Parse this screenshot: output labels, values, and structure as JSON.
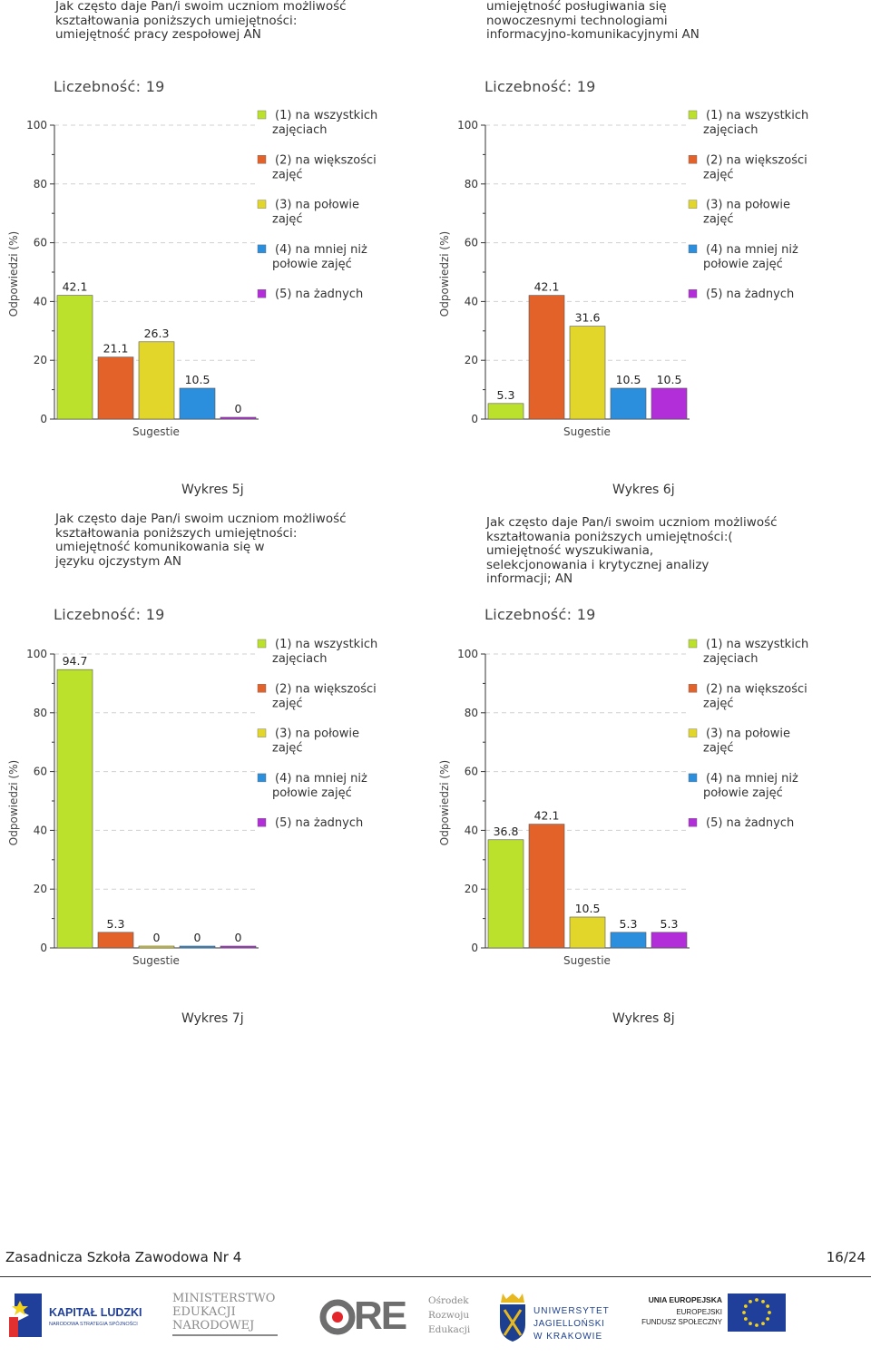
{
  "legend": [
    {
      "lines": [
        "(1) na wszystkich",
        "zajęciach"
      ],
      "color": "#bce12d"
    },
    {
      "lines": [
        "(2) na większości",
        "zajęć"
      ],
      "color": "#e2622a"
    },
    {
      "lines": [
        "(3) na połowie",
        "zajęć"
      ],
      "color": "#e2d62a"
    },
    {
      "lines": [
        "(4) na mniej niż",
        "połowie zajęć"
      ],
      "color": "#2b8fdd"
    },
    {
      "lines": [
        "(5) na żadnych"
      ],
      "color": "#b22ed8"
    }
  ],
  "chart_data": [
    {
      "type": "bar",
      "id": "5j",
      "question_lines": [
        "Jak często daje Pan/i swoim uczniom możliwość",
        "kształtowania poniższych umiejętności:",
        "umiejętność pracy zespołowej   AN"
      ],
      "count_label": "Liczebność: 19",
      "ylabel": "Odpowiedzi (%)",
      "xlabel": "Sugestie",
      "ylim": [
        0,
        100
      ],
      "yticks": [
        0,
        20,
        40,
        60,
        80,
        100
      ],
      "categories": [
        "(1)",
        "(2)",
        "(3)",
        "(4)",
        "(5)"
      ],
      "values": [
        42.1,
        21.1,
        26.3,
        10.5,
        0
      ],
      "labels": [
        "42.1",
        "21.1",
        "26.3",
        "10.5",
        "0"
      ],
      "caption": "Wykres 5j"
    },
    {
      "type": "bar",
      "id": "6j",
      "question_lines": [
        "umiejętność posługiwania się",
        "nowoczesnymi technologiami",
        "informacyjno-komunikacyjnymi AN"
      ],
      "count_label": "Liczebność: 19",
      "ylabel": "Odpowiedzi (%)",
      "xlabel": "Sugestie",
      "ylim": [
        0,
        100
      ],
      "yticks": [
        0,
        20,
        40,
        60,
        80,
        100
      ],
      "categories": [
        "(1)",
        "(2)",
        "(3)",
        "(4)",
        "(5)"
      ],
      "values": [
        5.3,
        42.1,
        31.6,
        10.5,
        10.5
      ],
      "labels": [
        "5.3",
        "42.1",
        "31.6",
        "10.5",
        "10.5"
      ],
      "caption": "Wykres 6j"
    },
    {
      "type": "bar",
      "id": "7j",
      "question_lines": [
        "Jak często daje Pan/i swoim uczniom możliwość",
        "kształtowania poniższych umiejętności:",
        "umiejętność komunikowania się w",
        "języku ojczystym AN"
      ],
      "count_label": "Liczebność: 19",
      "ylabel": "Odpowiedzi (%)",
      "xlabel": "Sugestie",
      "ylim": [
        0,
        100
      ],
      "yticks": [
        0,
        20,
        40,
        60,
        80,
        100
      ],
      "categories": [
        "(1)",
        "(2)",
        "(3)",
        "(4)",
        "(5)"
      ],
      "values": [
        94.7,
        5.3,
        0,
        0,
        0
      ],
      "labels": [
        "94.7",
        "5.3",
        "0",
        "0",
        "0"
      ],
      "caption": "Wykres 7j"
    },
    {
      "type": "bar",
      "id": "8j",
      "question_lines": [
        "Jak często daje Pan/i swoim uczniom możliwość",
        "kształtowania poniższych umiejętności:(",
        "umiejętność wyszukiwania,",
        "selekcjonowania i krytycznej analizy",
        "informacji;  AN"
      ],
      "count_label": "Liczebność: 19",
      "ylabel": "Odpowiedzi (%)",
      "xlabel": "Sugestie",
      "ylim": [
        0,
        100
      ],
      "yticks": [
        0,
        20,
        40,
        60,
        80,
        100
      ],
      "categories": [
        "(1)",
        "(2)",
        "(3)",
        "(4)",
        "(5)"
      ],
      "values": [
        36.8,
        42.1,
        10.5,
        5.3,
        5.3
      ],
      "labels": [
        "36.8",
        "42.1",
        "10.5",
        "5.3",
        "5.3"
      ],
      "caption": "Wykres 8j"
    }
  ],
  "footer": {
    "school": "Zasadnicza Szkoła Zawodowa Nr 4",
    "page": "16/24"
  },
  "logos": {
    "kapital_ludzki": {
      "title": "KAPITAŁ LUDZKI",
      "subtitle": "NARODOWA STRATEGIA SPÓJNOŚCI"
    },
    "men": {
      "lines": [
        "MINISTERSTWO",
        "EDUKACJI",
        "NARODOWEJ"
      ]
    },
    "ore": {
      "mark": "RE",
      "lines": [
        "Ośrodek",
        "Rozwoju",
        "Edukacji"
      ]
    },
    "uj": {
      "lines": [
        "UNIWERSYTET",
        "JAGIELLOŃSKI",
        "W KRAKOWIE"
      ]
    },
    "ue": {
      "lines": [
        "UNIA EUROPEJSKA",
        "EUROPEJSKI",
        "FUNDUSZ SPOŁECZNY"
      ]
    }
  }
}
